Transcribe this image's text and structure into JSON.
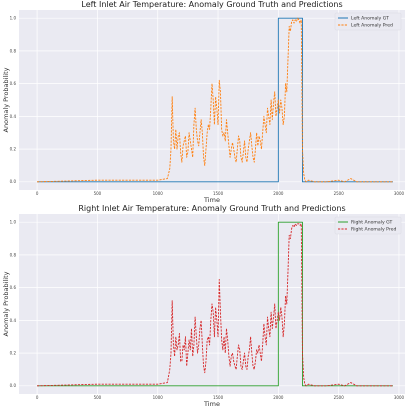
{
  "chart_data": [
    {
      "type": "line",
      "title": "Left Inlet Air Temperature: Anomaly Ground Truth and Predictions",
      "xlabel": "Time",
      "ylabel": "Anomaly Probability",
      "xlim": [
        -150,
        3050
      ],
      "ylim": [
        -0.05,
        1.05
      ],
      "xticks": [
        0,
        500,
        1000,
        1500,
        2000,
        2500,
        3000
      ],
      "yticks": [
        0.0,
        0.2,
        0.4,
        0.6,
        0.8,
        1.0
      ],
      "xtick_labels": [
        "0",
        "500",
        "1000",
        "1500",
        "2000",
        "2500",
        "3000"
      ],
      "ytick_labels": [
        "0.0",
        "0.2",
        "0.4",
        "0.6",
        "0.8",
        "1.0"
      ],
      "grid": true,
      "legend_position": "top-right",
      "series": [
        {
          "name": "Left Anomaly GT",
          "color": "#1f77b4",
          "style": "solid",
          "x": [
            0,
            2000,
            2000,
            2200,
            2200,
            2950
          ],
          "y": [
            0,
            0,
            1,
            1,
            0,
            0
          ]
        },
        {
          "name": "Left Anomaly Pred",
          "color": "#ff7f0e",
          "style": "dashed",
          "x": [
            0,
            500,
            1000,
            1080,
            1100,
            1110,
            1120,
            1130,
            1140,
            1150,
            1160,
            1170,
            1180,
            1190,
            1200,
            1210,
            1220,
            1230,
            1240,
            1250,
            1260,
            1270,
            1280,
            1290,
            1300,
            1310,
            1320,
            1330,
            1340,
            1350,
            1360,
            1370,
            1380,
            1390,
            1400,
            1410,
            1420,
            1430,
            1440,
            1450,
            1460,
            1470,
            1480,
            1490,
            1500,
            1510,
            1520,
            1530,
            1540,
            1550,
            1560,
            1570,
            1580,
            1590,
            1600,
            1610,
            1620,
            1630,
            1640,
            1650,
            1660,
            1670,
            1680,
            1690,
            1700,
            1710,
            1720,
            1730,
            1740,
            1750,
            1760,
            1770,
            1780,
            1790,
            1800,
            1810,
            1820,
            1830,
            1840,
            1850,
            1860,
            1870,
            1880,
            1890,
            1900,
            1910,
            1920,
            1930,
            1940,
            1950,
            1960,
            1970,
            1980,
            1990,
            2000,
            2010,
            2020,
            2030,
            2040,
            2050,
            2060,
            2070,
            2080,
            2090,
            2100,
            2110,
            2120,
            2130,
            2140,
            2150,
            2160,
            2170,
            2180,
            2190,
            2200,
            2210,
            2220,
            2230,
            2250,
            2300,
            2400,
            2500,
            2550,
            2600,
            2650,
            2800,
            2950
          ],
          "y": [
            0,
            0.01,
            0.01,
            0.02,
            0.08,
            0.2,
            0.52,
            0.25,
            0.2,
            0.32,
            0.2,
            0.28,
            0.3,
            0.18,
            0.12,
            0.22,
            0.25,
            0.28,
            0.15,
            0.18,
            0.3,
            0.25,
            0.2,
            0.15,
            0.35,
            0.45,
            0.32,
            0.25,
            0.22,
            0.3,
            0.38,
            0.3,
            0.15,
            0.1,
            0.2,
            0.3,
            0.35,
            0.32,
            0.45,
            0.6,
            0.5,
            0.35,
            0.52,
            0.45,
            0.35,
            0.62,
            0.55,
            0.32,
            0.28,
            0.3,
            0.25,
            0.38,
            0.3,
            0.22,
            0.15,
            0.2,
            0.24,
            0.2,
            0.15,
            0.12,
            0.2,
            0.28,
            0.25,
            0.15,
            0.12,
            0.18,
            0.25,
            0.15,
            0.12,
            0.2,
            0.25,
            0.3,
            0.22,
            0.15,
            0.12,
            0.2,
            0.3,
            0.22,
            0.28,
            0.25,
            0.2,
            0.3,
            0.4,
            0.35,
            0.3,
            0.45,
            0.4,
            0.35,
            0.5,
            0.38,
            0.48,
            0.55,
            0.4,
            0.45,
            0.5,
            0.42,
            0.5,
            0.45,
            0.35,
            0.4,
            0.6,
            0.55,
            0.75,
            0.95,
            0.92,
            0.98,
            0.99,
            0.97,
            0.99,
            0.98,
            1.0,
            0.99,
            0.97,
            0.99,
            0.2,
            0.05,
            0.01,
            0.0,
            0.01,
            0.0,
            0.0,
            0.01,
            0.0,
            0.02,
            0.0,
            0.0,
            0.0
          ]
        }
      ]
    },
    {
      "type": "line",
      "title": "Right Inlet Air Temperature: Anomaly Ground Truth and Predictions",
      "xlabel": "Time",
      "ylabel": "Anomaly Probability",
      "xlim": [
        -150,
        3050
      ],
      "ylim": [
        -0.05,
        1.05
      ],
      "xticks": [
        0,
        500,
        1000,
        1500,
        2000,
        2500,
        3000
      ],
      "yticks": [
        0.0,
        0.2,
        0.4,
        0.6,
        0.8,
        1.0
      ],
      "xtick_labels": [
        "0",
        "500",
        "1000",
        "1500",
        "2000",
        "2500",
        "3000"
      ],
      "ytick_labels": [
        "0.0",
        "0.2",
        "0.4",
        "0.6",
        "0.8",
        "1.0"
      ],
      "grid": true,
      "legend_position": "top-right",
      "series": [
        {
          "name": "Right Anomaly GT",
          "color": "#2ca02c",
          "style": "solid",
          "x": [
            0,
            2000,
            2000,
            2200,
            2200,
            2950
          ],
          "y": [
            0,
            0,
            1,
            1,
            0,
            0
          ]
        },
        {
          "name": "Right Anomaly Pred",
          "color": "#d62728",
          "style": "dashed",
          "x": [
            0,
            500,
            1000,
            1080,
            1100,
            1110,
            1120,
            1130,
            1140,
            1150,
            1160,
            1170,
            1180,
            1190,
            1200,
            1210,
            1220,
            1230,
            1240,
            1250,
            1260,
            1270,
            1280,
            1290,
            1300,
            1310,
            1320,
            1330,
            1340,
            1350,
            1360,
            1370,
            1380,
            1390,
            1400,
            1410,
            1420,
            1430,
            1440,
            1450,
            1460,
            1470,
            1480,
            1490,
            1500,
            1510,
            1520,
            1530,
            1540,
            1550,
            1560,
            1570,
            1580,
            1590,
            1600,
            1610,
            1620,
            1630,
            1640,
            1650,
            1660,
            1670,
            1680,
            1690,
            1700,
            1710,
            1720,
            1730,
            1740,
            1750,
            1760,
            1770,
            1780,
            1790,
            1800,
            1810,
            1820,
            1830,
            1840,
            1850,
            1860,
            1870,
            1880,
            1890,
            1900,
            1910,
            1920,
            1930,
            1940,
            1950,
            1960,
            1970,
            1980,
            1990,
            2000,
            2010,
            2020,
            2030,
            2040,
            2050,
            2060,
            2070,
            2080,
            2090,
            2100,
            2110,
            2120,
            2130,
            2140,
            2150,
            2160,
            2170,
            2180,
            2190,
            2200,
            2210,
            2220,
            2230,
            2250,
            2300,
            2400,
            2500,
            2550,
            2600,
            2650,
            2800,
            2950
          ],
          "y": [
            0,
            0.01,
            0.01,
            0.02,
            0.1,
            0.2,
            0.52,
            0.25,
            0.18,
            0.3,
            0.22,
            0.25,
            0.32,
            0.15,
            0.15,
            0.25,
            0.22,
            0.3,
            0.12,
            0.2,
            0.28,
            0.22,
            0.35,
            0.18,
            0.25,
            0.42,
            0.3,
            0.2,
            0.25,
            0.35,
            0.4,
            0.25,
            0.12,
            0.08,
            0.15,
            0.28,
            0.3,
            0.25,
            0.4,
            0.5,
            0.45,
            0.3,
            0.48,
            0.4,
            0.3,
            0.65,
            0.45,
            0.28,
            0.22,
            0.3,
            0.2,
            0.35,
            0.28,
            0.18,
            0.12,
            0.18,
            0.2,
            0.15,
            0.12,
            0.1,
            0.18,
            0.25,
            0.22,
            0.12,
            0.1,
            0.15,
            0.2,
            0.12,
            0.1,
            0.18,
            0.22,
            0.3,
            0.2,
            0.12,
            0.1,
            0.15,
            0.22,
            0.2,
            0.25,
            0.2,
            0.15,
            0.25,
            0.38,
            0.3,
            0.25,
            0.42,
            0.35,
            0.3,
            0.45,
            0.35,
            0.42,
            0.5,
            0.35,
            0.4,
            0.45,
            0.4,
            0.48,
            0.42,
            0.3,
            0.38,
            0.55,
            0.5,
            0.7,
            0.92,
            0.9,
            0.96,
            0.98,
            0.97,
            0.99,
            0.98,
            0.99,
            0.99,
            0.98,
            0.99,
            0.2,
            0.05,
            0.01,
            0.0,
            0.01,
            0.0,
            0.0,
            0.01,
            0.0,
            0.02,
            0.0,
            0.0,
            0.0
          ]
        }
      ]
    }
  ]
}
